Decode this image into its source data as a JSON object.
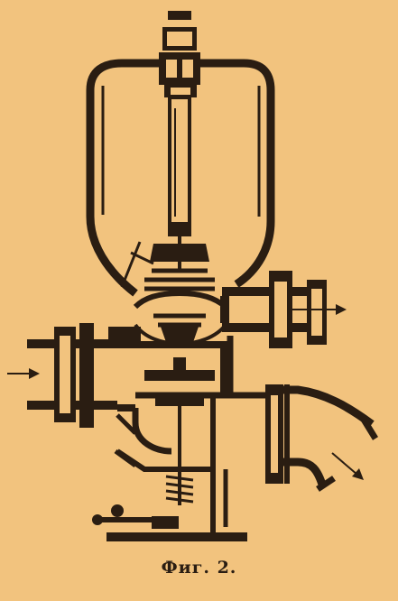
{
  "figure": {
    "caption": "Фиг. 2.",
    "colors": {
      "paper": "#f2c37e",
      "ink": "#2a1d12"
    }
  }
}
